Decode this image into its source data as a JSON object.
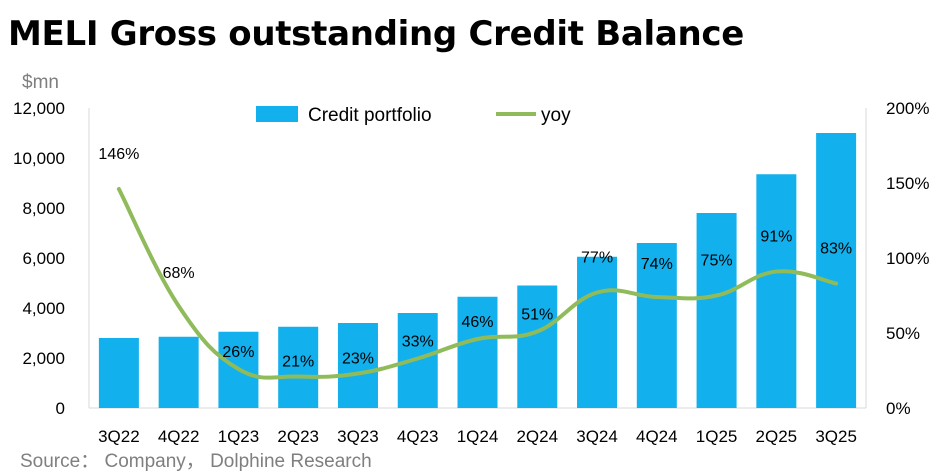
{
  "title": "MELI Gross outstanding Credit Balance",
  "unit_label": "$mn",
  "source": "Source： Company， Dolphine Research",
  "colors": {
    "bar": "#12b0ec",
    "line": "#90bb5a"
  },
  "chart_data": {
    "type": "bar",
    "categories": [
      "3Q22",
      "4Q22",
      "1Q23",
      "2Q23",
      "3Q23",
      "4Q23",
      "1Q24",
      "2Q24",
      "3Q24",
      "4Q24",
      "1Q25",
      "2Q25",
      "3Q25"
    ],
    "series": [
      {
        "name": "Credit portfolio",
        "type": "bar",
        "axis": "left",
        "values": [
          2800,
          2850,
          3050,
          3250,
          3400,
          3800,
          4450,
          4900,
          6050,
          6600,
          7800,
          9350,
          11000
        ]
      },
      {
        "name": "yoy",
        "type": "line",
        "axis": "right",
        "values": [
          146,
          68,
          26,
          21,
          23,
          33,
          46,
          51,
          77,
          74,
          75,
          91,
          83
        ],
        "labels": [
          "146%",
          "68%",
          "26%",
          "21%",
          "23%",
          "33%",
          "46%",
          "51%",
          "77%",
          "74%",
          "75%",
          "91%",
          "83%"
        ]
      }
    ],
    "y_left": {
      "range": [
        0,
        12000
      ],
      "ticks": [
        0,
        2000,
        4000,
        6000,
        8000,
        10000,
        12000
      ],
      "tick_labels": [
        "0",
        "2,000",
        "4,000",
        "6,000",
        "8,000",
        "10,000",
        "12,000"
      ]
    },
    "y_right": {
      "range": [
        0,
        200
      ],
      "ticks": [
        0,
        50,
        100,
        150,
        200
      ],
      "tick_labels": [
        "0%",
        "50%",
        "100%",
        "150%",
        "200%"
      ]
    },
    "legend": {
      "position": "top",
      "entries": [
        "Credit portfolio",
        "yoy"
      ]
    },
    "grid": false
  }
}
